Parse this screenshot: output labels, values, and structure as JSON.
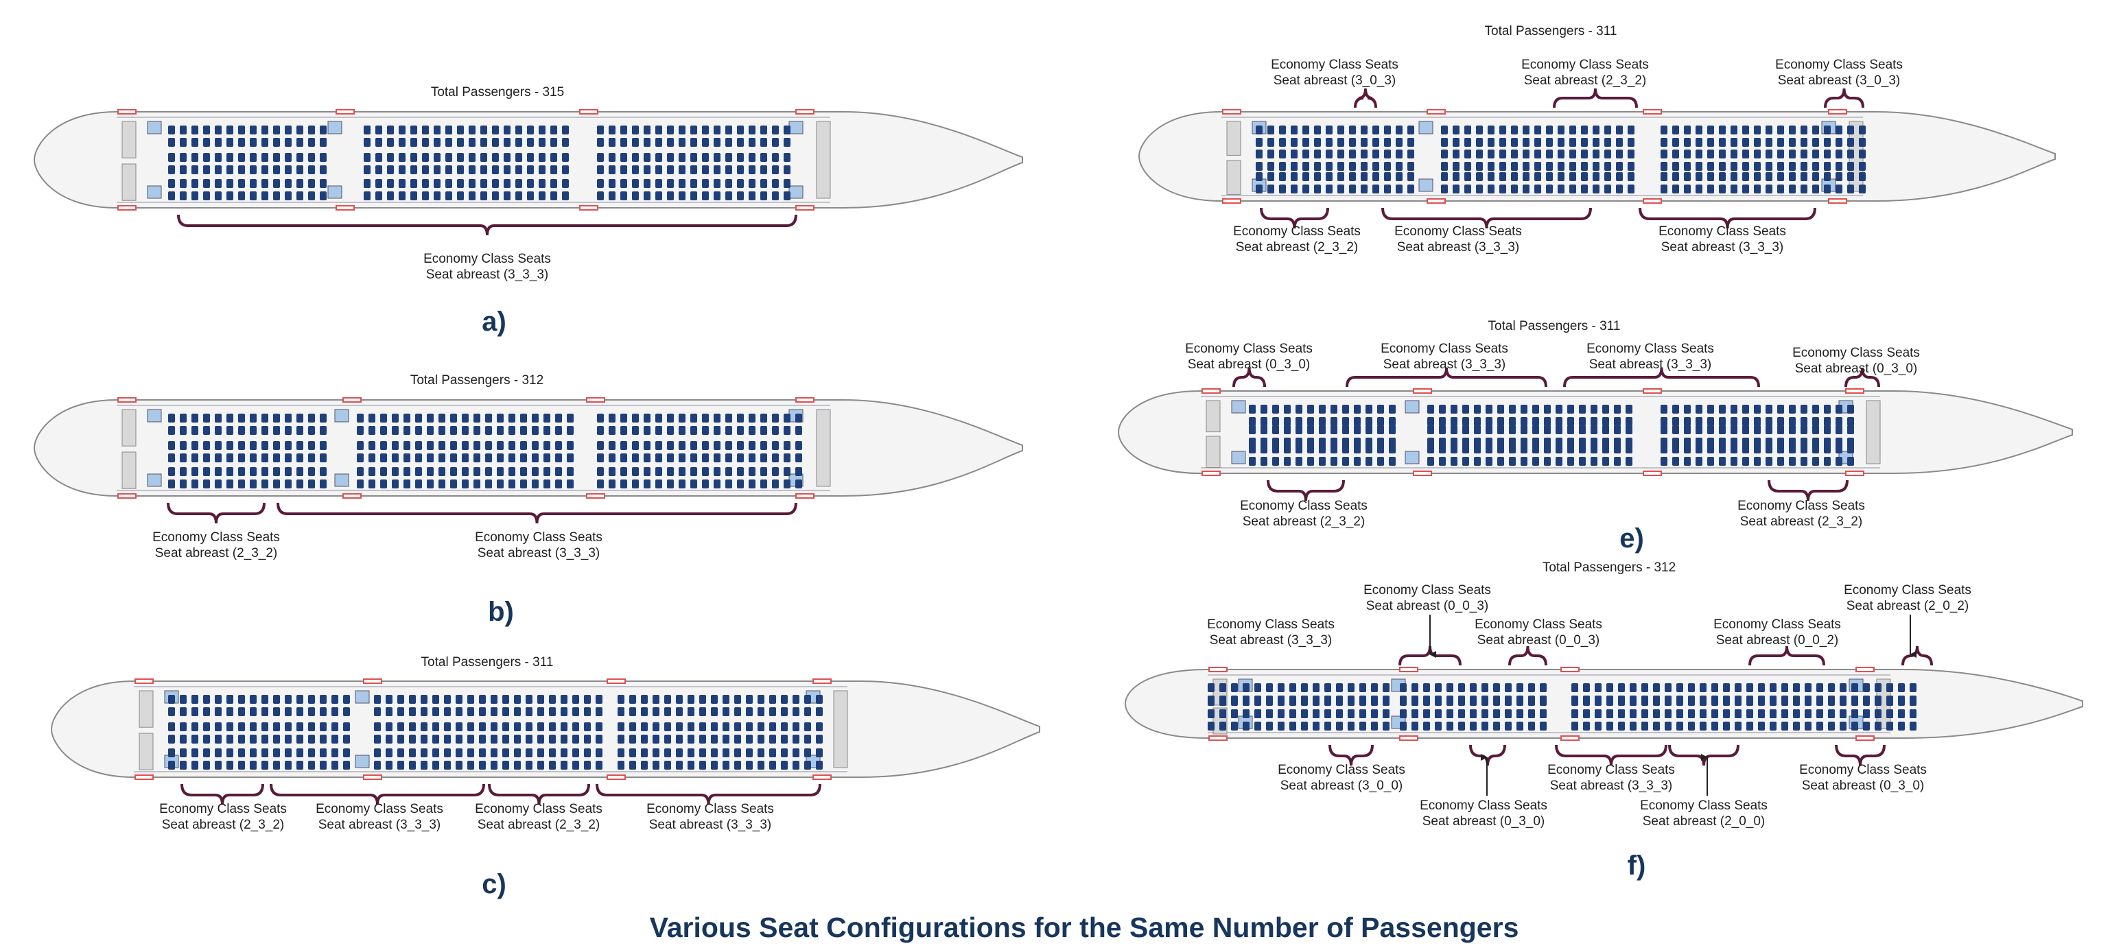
{
  "title": "Various Seat Configurations for the Same Number of Passengers",
  "panels": [
    {
      "id": "a",
      "label": "a)",
      "total": "Total Passengers - 315",
      "annotations": [
        {
          "line1": "Economy Class Seats",
          "line2": "Seat abreast (3_3_3)"
        }
      ]
    },
    {
      "id": "b",
      "label": "b)",
      "total": "Total Passengers - 312",
      "annotations": [
        {
          "line1": "Economy Class Seats",
          "line2": "Seat abreast (2_3_2)"
        },
        {
          "line1": "Economy Class Seats",
          "line2": "Seat abreast (3_3_3)"
        }
      ]
    },
    {
      "id": "c",
      "label": "c)",
      "total": "Total Passengers - 311",
      "annotations": [
        {
          "line1": "Economy Class Seats",
          "line2": "Seat abreast (2_3_2)"
        },
        {
          "line1": "Economy Class Seats",
          "line2": "Seat abreast (3_3_3)"
        },
        {
          "line1": "Economy Class Seats",
          "line2": "Seat abreast (2_3_2)"
        },
        {
          "line1": "Economy Class Seats",
          "line2": "Seat abreast (3_3_3)"
        }
      ]
    },
    {
      "id": "d",
      "label": "",
      "total": "Total Passengers - 311",
      "annotations": [
        {
          "line1": "Economy Class Seats",
          "line2": "Seat abreast (3_0_3)"
        },
        {
          "line1": "Economy Class Seats",
          "line2": "Seat abreast (2_3_2)"
        },
        {
          "line1": "Economy Class Seats",
          "line2": "Seat abreast (3_0_3)"
        },
        {
          "line1": "Economy Class Seats",
          "line2": "Seat abreast (2_3_2)"
        },
        {
          "line1": "Economy Class Seats",
          "line2": "Seat abreast (3_3_3)"
        },
        {
          "line1": "Economy Class Seats",
          "line2": "Seat abreast (3_3_3)"
        }
      ]
    },
    {
      "id": "e",
      "label": "e)",
      "total": "Total Passengers - 311",
      "annotations": [
        {
          "line1": "Economy Class Seats",
          "line2": "Seat abreast (0_3_0)"
        },
        {
          "line1": "Economy Class Seats",
          "line2": "Seat abreast (3_3_3)"
        },
        {
          "line1": "Economy Class Seats",
          "line2": "Seat abreast (3_3_3)"
        },
        {
          "line1": "Economy Class Seats",
          "line2": "Seat abreast (0_3_0)"
        },
        {
          "line1": "Economy Class Seats",
          "line2": "Seat abreast (2_3_2)"
        },
        {
          "line1": "Economy Class Seats",
          "line2": "Seat abreast (2_3_2)"
        }
      ]
    },
    {
      "id": "f",
      "label": "f)",
      "total": "Total Passengers - 312",
      "annotations": [
        {
          "line1": "Economy Class Seats",
          "line2": "Seat abreast (0_0_3)"
        },
        {
          "line1": "Economy Class Seats",
          "line2": "Seat abreast (2_0_2)"
        },
        {
          "line1": "Economy Class Seats",
          "line2": "Seat abreast (3_3_3)"
        },
        {
          "line1": "Economy Class Seats",
          "line2": "Seat abreast (0_0_3)"
        },
        {
          "line1": "Economy Class Seats",
          "line2": "Seat abreast (0_0_2)"
        },
        {
          "line1": "Economy Class Seats",
          "line2": "Seat abreast (3_0_0)"
        },
        {
          "line1": "Economy Class Seats",
          "line2": "Seat abreast (3_3_3)"
        },
        {
          "line1": "Economy Class Seats",
          "line2": "Seat abreast (0_3_0)"
        },
        {
          "line1": "Economy Class Seats",
          "line2": "Seat abreast (0_3_0)"
        },
        {
          "line1": "Economy Class Seats",
          "line2": "Seat abreast (2_0_0)"
        }
      ]
    }
  ],
  "colors": {
    "seat": "#1f3f7a",
    "bracket": "#5a1a3a",
    "galley": "#aac8e8",
    "door": "#e05050",
    "title": "#17365d"
  }
}
